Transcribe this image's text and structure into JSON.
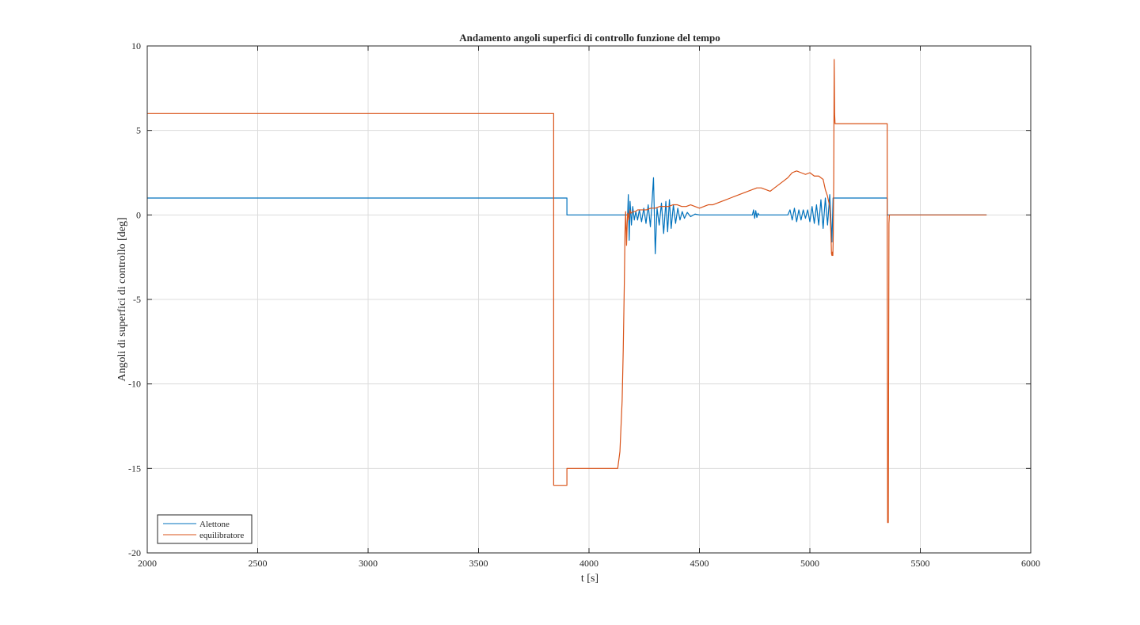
{
  "figure": {
    "background": "#ffffff"
  },
  "chart_data": {
    "type": "line",
    "title": "Andamento angoli superfici di controllo funzione del tempo",
    "xlabel": "t [s]",
    "ylabel": "Angoli di superfici di controllo [deg]",
    "xlim": [
      2000,
      6000
    ],
    "ylim": [
      -20,
      10
    ],
    "xticks": [
      2000,
      2500,
      3000,
      3500,
      4000,
      4500,
      5000,
      5500,
      6000
    ],
    "xtick_labels": [
      "2000",
      "2500",
      "3000",
      "3500",
      "4000",
      "4500",
      "5000",
      "5500",
      "6000"
    ],
    "yticks": [
      -20,
      -15,
      -10,
      -5,
      0,
      5,
      10
    ],
    "ytick_labels": [
      "-20",
      "-15",
      "-10",
      "-5",
      "0",
      "5",
      "10"
    ],
    "grid": true,
    "legend_position": "bottom-left",
    "series": [
      {
        "name": "Alettone",
        "color": "#0072BD",
        "x": [
          2000,
          3900,
          3900,
          4175,
          4178,
          4182,
          4186,
          4192,
          4198,
          4205,
          4212,
          4220,
          4228,
          4238,
          4248,
          4258,
          4268,
          4278,
          4286,
          4292,
          4300,
          4308,
          4318,
          4328,
          4338,
          4348,
          4356,
          4364,
          4372,
          4382,
          4392,
          4402,
          4412,
          4422,
          4432,
          4445,
          4460,
          4480,
          4500,
          4600,
          4740,
          4745,
          4750,
          4755,
          4760,
          4765,
          4770,
          4780,
          4900,
          4910,
          4920,
          4930,
          4940,
          4950,
          4960,
          4970,
          4980,
          4990,
          5000,
          5010,
          5020,
          5030,
          5040,
          5050,
          5060,
          5070,
          5080,
          5090,
          5100,
          5105,
          5110,
          5115,
          5350,
          5350,
          5800
        ],
        "y": [
          1,
          1,
          0,
          0,
          1.2,
          -1.5,
          0.8,
          -0.6,
          0.5,
          -0.3,
          0.2,
          -0.3,
          0.3,
          -0.4,
          0.4,
          -0.5,
          0.6,
          -0.7,
          0.9,
          2.2,
          -2.3,
          0.4,
          -0.6,
          0.7,
          -1.1,
          0.8,
          -1.0,
          0.9,
          -0.8,
          0.6,
          -0.5,
          0.4,
          -0.3,
          0.2,
          -0.2,
          0.15,
          -0.1,
          0.05,
          0,
          0,
          0,
          0.3,
          -0.2,
          0.25,
          -0.15,
          0.1,
          0,
          0,
          0,
          0.3,
          -0.3,
          0.4,
          -0.4,
          0.3,
          -0.3,
          0.3,
          -0.2,
          0.3,
          -0.4,
          0.5,
          -0.5,
          0.6,
          -0.6,
          0.9,
          -0.8,
          1.0,
          -0.6,
          1.2,
          -1.6,
          1.0,
          1.0,
          1.0,
          1.0,
          0,
          0
        ]
      },
      {
        "name": "equilibratore",
        "color": "#D95319",
        "x": [
          2000,
          3840,
          3840,
          3900,
          3900,
          4130,
          4140,
          4150,
          4155,
          4160,
          4163,
          4166,
          4170,
          4173,
          4175,
          4178,
          4180,
          4185,
          4190,
          4200,
          4210,
          4220,
          4240,
          4260,
          4280,
          4300,
          4320,
          4340,
          4360,
          4380,
          4400,
          4420,
          4440,
          4460,
          4480,
          4500,
          4520,
          4540,
          4560,
          4580,
          4600,
          4620,
          4640,
          4660,
          4680,
          4700,
          4720,
          4740,
          4760,
          4780,
          4800,
          4820,
          4840,
          4860,
          4880,
          4900,
          4920,
          4940,
          4960,
          4980,
          5000,
          5020,
          5040,
          5060,
          5070,
          5080,
          5090,
          5095,
          5098,
          5100,
          5102,
          5104,
          5106,
          5108,
          5110,
          5112,
          5114,
          5116,
          5118,
          5350,
          5350,
          5352,
          5355,
          5358,
          5360,
          5800
        ],
        "y": [
          6,
          6,
          -16,
          -16,
          -15,
          -15,
          -14,
          -11,
          -8,
          -4,
          -1,
          0.2,
          -1.8,
          -0.5,
          0.1,
          0,
          -0.3,
          0.3,
          0.1,
          0.2,
          0.2,
          0.3,
          0.3,
          0.3,
          0.4,
          0.4,
          0.5,
          0.5,
          0.5,
          0.6,
          0.6,
          0.5,
          0.5,
          0.6,
          0.5,
          0.4,
          0.5,
          0.6,
          0.6,
          0.7,
          0.8,
          0.9,
          1.0,
          1.1,
          1.2,
          1.3,
          1.4,
          1.5,
          1.6,
          1.6,
          1.5,
          1.4,
          1.6,
          1.8,
          2.0,
          2.2,
          2.5,
          2.6,
          2.5,
          2.4,
          2.5,
          2.3,
          2.3,
          2.1,
          1.5,
          1.1,
          0.5,
          -1.0,
          -2.3,
          -2.4,
          -2.2,
          -2.4,
          -1.2,
          2.0,
          9.2,
          6.0,
          5.4,
          5.4,
          5.4,
          5.4,
          0,
          -18.2,
          -18.2,
          -0.5,
          0,
          0
        ]
      }
    ]
  }
}
